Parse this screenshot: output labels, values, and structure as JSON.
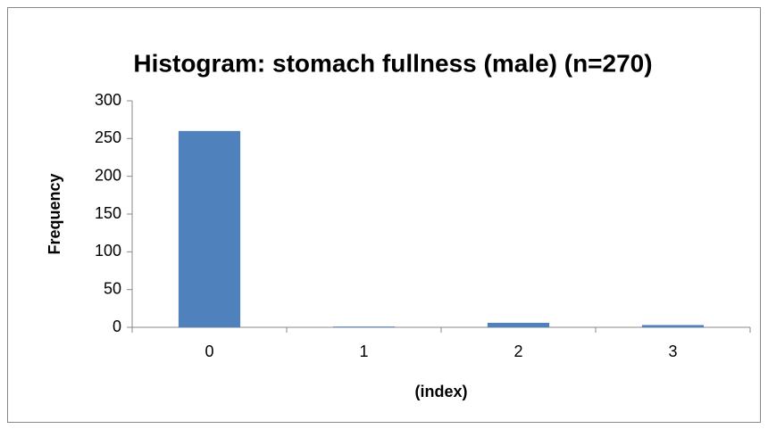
{
  "chart_data": {
    "type": "bar",
    "title": "Histogram: stomach fullness (male) (n=270)",
    "x_label": "(index)",
    "y_label": "Frequency",
    "categories": [
      "0",
      "1",
      "2",
      "3"
    ],
    "values": [
      260,
      1,
      6,
      3
    ],
    "color": "#4f81bd",
    "ylim": [
      0,
      300
    ],
    "yticks": [
      0,
      50,
      100,
      150,
      200,
      250,
      300
    ],
    "grid": false
  }
}
